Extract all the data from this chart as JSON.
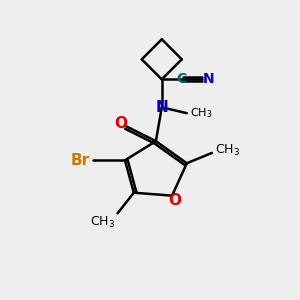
{
  "bg_color": "#eeeeee",
  "bond_color": "#000000",
  "bond_width": 1.8,
  "atom_colors": {
    "O": "#dd0000",
    "N": "#0000cc",
    "Br": "#cc7700",
    "C_nitrile": "#006666",
    "C": "#000000"
  },
  "font_size_atom": 11,
  "font_size_label": 9,
  "fig_size": [
    3.0,
    3.0
  ],
  "dpi": 100
}
